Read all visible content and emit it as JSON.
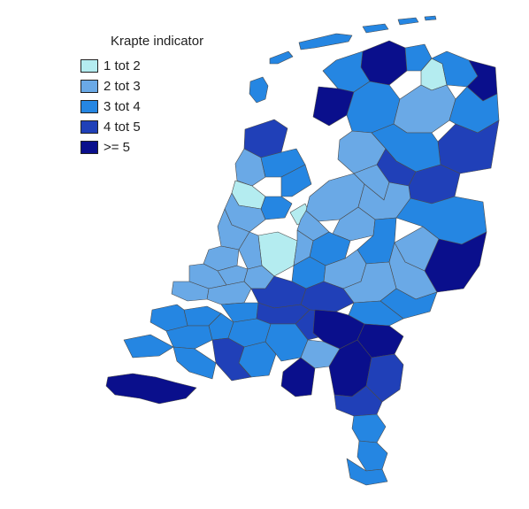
{
  "legend": {
    "title": "Krapte indicator",
    "items": [
      {
        "label": "1 tot 2",
        "color": "#b4ecf0"
      },
      {
        "label": "2 tot 3",
        "color": "#6aa9e6"
      },
      {
        "label": "3 tot 4",
        "color": "#2586e2"
      },
      {
        "label": "4 tot 5",
        "color": "#2040b8"
      },
      {
        "label": ">= 5",
        "color": "#0a0f8c"
      }
    ]
  },
  "map": {
    "border_color": "#4a4a4a",
    "water_color": "#ffffff"
  }
}
